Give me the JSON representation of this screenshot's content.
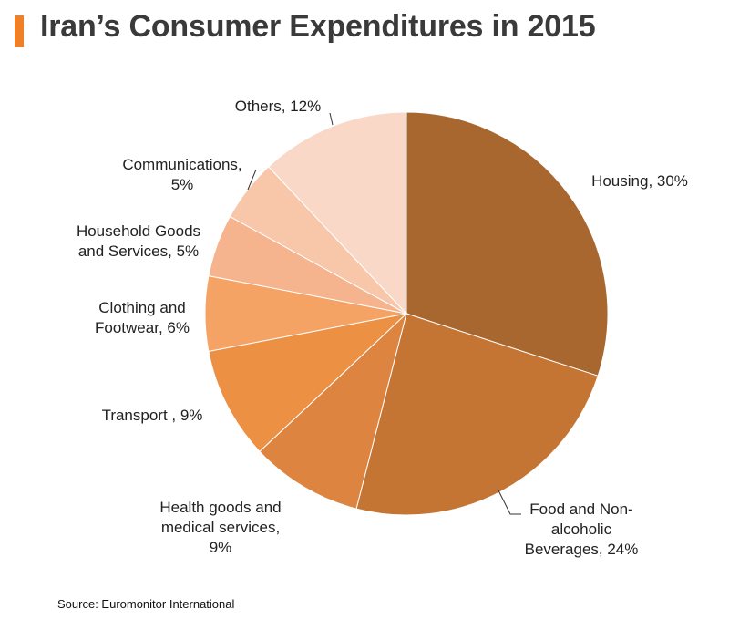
{
  "title": "Iran’s Consumer Expenditures in 2015",
  "source": "Source: Euromonitor International",
  "colors": {
    "accent": "#f07f25"
  },
  "chart_data": {
    "type": "pie",
    "start": "12 o'clock",
    "direction": "clockwise",
    "slices": [
      {
        "label": "Housing, 30%",
        "value": 30,
        "color": "#a8672f"
      },
      {
        "label": "Food and Non-alcoholic Beverages, 24%",
        "value": 24,
        "color": "#c47534"
      },
      {
        "label": "Health goods and medical services, 9%",
        "value": 9,
        "color": "#dd8540"
      },
      {
        "label": "Transport , 9%",
        "value": 9,
        "color": "#ec9144"
      },
      {
        "label": "Clothing and Footwear, 6%",
        "value": 6,
        "color": "#f5a265"
      },
      {
        "label": "Household Goods and Services, 5%",
        "value": 5,
        "color": "#f6b48e"
      },
      {
        "label": "Communications, 5%",
        "value": 5,
        "color": "#f8c6a8"
      },
      {
        "label": "Others, 12%",
        "value": 12,
        "color": "#fad8c8"
      }
    ]
  }
}
